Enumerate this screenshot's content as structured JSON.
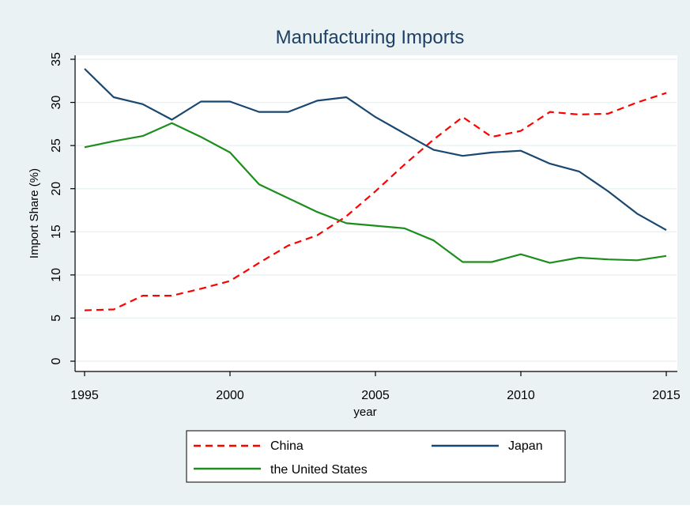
{
  "chart_data": {
    "type": "line",
    "title": "Manufacturing Imports",
    "xlabel": "year",
    "ylabel": "Import Share (%)",
    "xlim": [
      1995,
      2015
    ],
    "ylim": [
      0,
      35
    ],
    "x_ticks": [
      1995,
      2000,
      2005,
      2010,
      2015
    ],
    "y_ticks": [
      0,
      5,
      10,
      15,
      20,
      25,
      30,
      35
    ],
    "grid": true,
    "legend_position": "bottom",
    "x": [
      1995,
      1996,
      1997,
      1998,
      1999,
      2000,
      2001,
      2002,
      2003,
      2004,
      2005,
      2006,
      2007,
      2008,
      2009,
      2010,
      2011,
      2012,
      2013,
      2014,
      2015
    ],
    "series": [
      {
        "name": "China",
        "color": "#ff0000",
        "dash": "dashed",
        "values": [
          5.9,
          6.0,
          7.6,
          7.6,
          8.4,
          9.3,
          11.4,
          13.4,
          14.6,
          16.8,
          19.7,
          22.8,
          25.7,
          28.3,
          26.0,
          26.7,
          28.9,
          28.6,
          28.7,
          30.0,
          31.1
        ]
      },
      {
        "name": "Japan",
        "color": "#1a476f",
        "dash": "solid",
        "values": [
          33.9,
          30.6,
          29.8,
          28.0,
          30.1,
          30.1,
          28.9,
          28.9,
          30.2,
          30.6,
          28.3,
          26.4,
          24.5,
          23.8,
          24.2,
          24.4,
          22.9,
          22.0,
          19.7,
          17.1,
          15.2
        ]
      },
      {
        "name": "the United States",
        "color": "#1d8e1d",
        "dash": "solid",
        "values": [
          24.8,
          25.5,
          26.1,
          27.6,
          26.0,
          24.2,
          20.5,
          18.9,
          17.3,
          16.0,
          15.7,
          15.4,
          14.0,
          11.5,
          11.5,
          12.4,
          11.4,
          12.0,
          11.8,
          11.7,
          12.2
        ]
      }
    ]
  },
  "colors": {
    "outer_background": "#eaf2f3",
    "plot_background": "#ffffff",
    "grid": "#eaf2f3",
    "axis": "#000000",
    "title": "#1e3f66"
  }
}
